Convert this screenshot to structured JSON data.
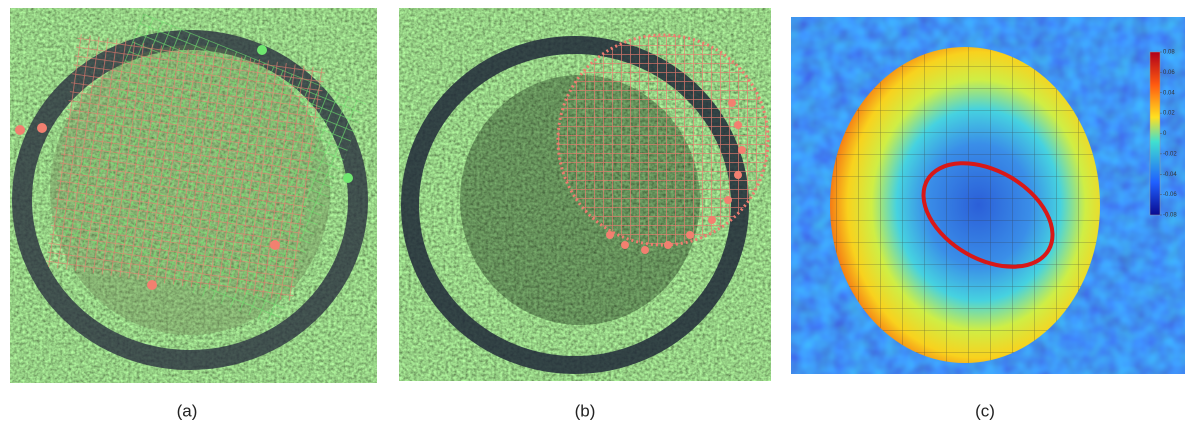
{
  "panels": [
    {
      "label": "(a)"
    },
    {
      "label": "(b)"
    },
    {
      "label": "(c)",
      "colorbar": {
        "lim": [
          -0.08,
          0.08
        ],
        "ticks": [
          0.08,
          0.06,
          0.04,
          0.02,
          0,
          -0.02,
          -0.04,
          -0.06,
          -0.08
        ]
      }
    }
  ]
}
